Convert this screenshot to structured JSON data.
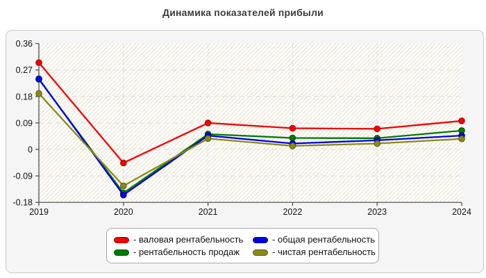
{
  "page": {
    "title": "Динамика показателей прибыли"
  },
  "colors": {
    "card_bg": "#f5f5f5",
    "card_border": "#c9c9c9",
    "plot_hatch": "#eeeadb",
    "grid": "#dcdcdc",
    "axis": "#444444",
    "tick_text": "#111111",
    "title_text": "#3b3b3b",
    "legend_border": "#a9a9a9",
    "red": "#f20000",
    "blue": "#0000e8",
    "green": "#007b00",
    "olive": "#8a8a1a"
  },
  "chart_data": {
    "type": "line",
    "title": "Динамика показателей прибыли",
    "categories": [
      "2019",
      "2020",
      "2021",
      "2022",
      "2023",
      "2024"
    ],
    "series": [
      {
        "name": "валовая рентабельность",
        "color": "#f20000",
        "edge": "#a00000",
        "values": [
          0.295,
          -0.046,
          0.09,
          0.072,
          0.07,
          0.097
        ]
      },
      {
        "name": "рентабельность продаж",
        "color": "#007b00",
        "edge": "#004d00",
        "values": [
          0.238,
          -0.148,
          0.052,
          0.039,
          0.038,
          0.064
        ]
      },
      {
        "name": "общая рентабельность",
        "color": "#0000e8",
        "edge": "#000090",
        "values": [
          0.24,
          -0.155,
          0.047,
          0.02,
          0.031,
          0.047
        ]
      },
      {
        "name": "чистая рентабельность",
        "color": "#8a8a1a",
        "edge": "#55550a",
        "values": [
          0.19,
          -0.124,
          0.037,
          0.012,
          0.02,
          0.036
        ]
      }
    ],
    "xlabel": "",
    "ylabel": "",
    "ylim": [
      -0.18,
      0.36
    ],
    "yticks": [
      "0.36",
      "0.27",
      "0.18",
      "0.09",
      "0",
      "-0.09",
      "-0.18"
    ],
    "grid": true,
    "grid_style": "dashed",
    "legend_position": "bottom-center"
  },
  "legend": {
    "items": [
      {
        "label": "- валовая рентабельность",
        "color": "#f20000",
        "edge": "#a00000"
      },
      {
        "label": "- общая рентабельность",
        "color": "#0000e8",
        "edge": "#000090"
      },
      {
        "label": "- рентабельность продаж",
        "color": "#007b00",
        "edge": "#004d00"
      },
      {
        "label": "- чистая рентабельность",
        "color": "#8a8a1a",
        "edge": "#55550a"
      }
    ]
  }
}
